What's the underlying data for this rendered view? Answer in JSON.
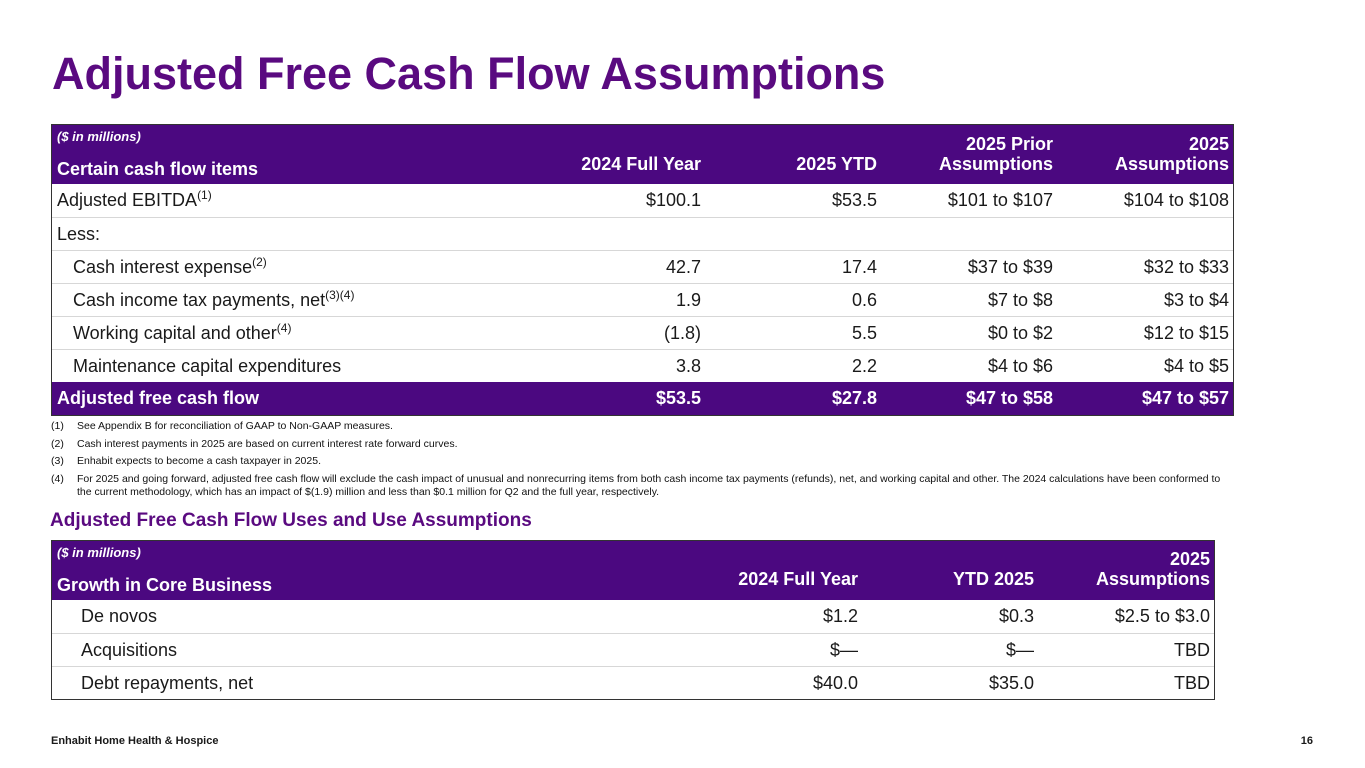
{
  "title": "Adjusted Free Cash Flow Assumptions",
  "table1": {
    "units": "($ in millions)",
    "row_header": "Certain cash flow items",
    "columns": [
      "2024 Full Year",
      "2025 YTD",
      "2025 Prior Assumptions",
      "2025 Assumptions"
    ],
    "rows": [
      {
        "label": "Adjusted EBITDA",
        "sup": "(1)",
        "values": [
          "$100.1",
          "$53.5",
          "$101 to $107",
          "$104 to $108"
        ]
      },
      {
        "label": "Less:",
        "sup": "",
        "values": [
          "",
          "",
          "",
          ""
        ]
      },
      {
        "label": "Cash interest expense",
        "sup": "(2)",
        "values": [
          "42.7",
          "17.4",
          "$37 to $39",
          "$32 to $33"
        ]
      },
      {
        "label": "Cash income tax payments, net",
        "sup": "(3)(4)",
        "values": [
          "1.9",
          "0.6",
          "$7 to $8",
          "$3 to $4"
        ]
      },
      {
        "label": "Working capital and other",
        "sup": "(4)",
        "values": [
          "(1.8)",
          "5.5",
          "$0 to $2",
          "$12 to $15"
        ]
      },
      {
        "label": "Maintenance capital expenditures",
        "sup": "",
        "values": [
          "3.8",
          "2.2",
          "$4 to $6",
          "$4 to $5"
        ]
      }
    ],
    "total": {
      "label": "Adjusted free cash flow",
      "values": [
        "$53.5",
        "$27.8",
        "$47 to $58",
        "$47 to $57"
      ]
    }
  },
  "footnotes": [
    {
      "num": "(1)",
      "text": "See Appendix B for reconciliation of GAAP to Non-GAAP measures."
    },
    {
      "num": "(2)",
      "text": "Cash interest payments in 2025 are based on current interest rate forward curves."
    },
    {
      "num": "(3)",
      "text": "Enhabit expects to become a cash taxpayer in 2025."
    },
    {
      "num": "(4)",
      "text": "For 2025 and going forward, adjusted free cash flow will exclude the cash impact of unusual and nonrecurring items from both cash income tax payments (refunds), net, and working capital and other. The 2024 calculations have been conformed to the current methodology, which has an impact of $(1.9) million and less than $0.1 million for Q2 and the full year, respectively."
    }
  ],
  "subtitle": "Adjusted Free Cash Flow Uses and Use Assumptions",
  "table2": {
    "units": "($ in millions)",
    "row_header": "Growth in Core Business",
    "columns": [
      "2024 Full Year",
      "YTD 2025",
      "2025 Assumptions"
    ],
    "rows": [
      {
        "label": "De novos",
        "values": [
          "$1.2",
          "$0.3",
          "$2.5 to $3.0"
        ]
      },
      {
        "label": "Acquisitions",
        "values": [
          "$—",
          "$—",
          "TBD"
        ]
      },
      {
        "label": "Debt repayments, net",
        "values": [
          "$40.0",
          "$35.0",
          "TBD"
        ]
      }
    ]
  },
  "footer": {
    "company": "Enhabit Home Health & Hospice",
    "page": "16"
  }
}
